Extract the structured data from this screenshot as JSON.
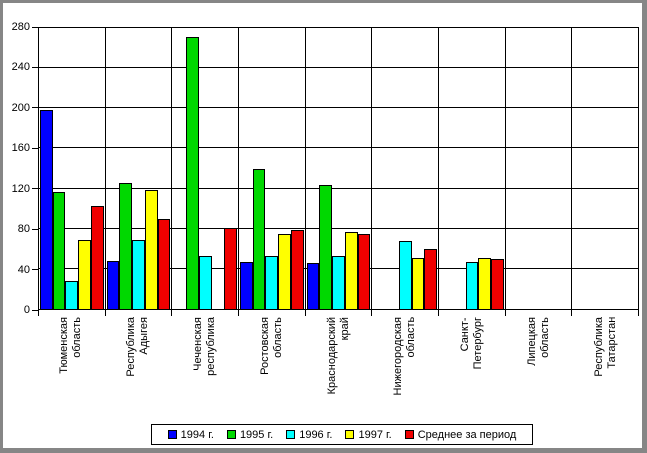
{
  "chart_data": {
    "type": "bar",
    "title": "",
    "xlabel": "",
    "ylabel": "",
    "grid": "both",
    "legend_position": "bottom",
    "y_axis": {
      "min": 0,
      "max": 280,
      "step": 40,
      "ticks": [
        "0",
        "40",
        "80",
        "120",
        "160",
        "200",
        "240",
        "280"
      ]
    },
    "categories": [
      "Тюменская\nобласть",
      "Республика\nАдыгея",
      "Чеченская\nреспублика",
      "Ростовская\nобласть",
      "Краснодарский\nкрай",
      "Нижегородская\nобласть",
      "Санкт-\nПетербург",
      "Липецкая\nобласть",
      "Республика\nТатарстан"
    ],
    "series": [
      {
        "name": "1994 г.",
        "color": "#0000ff",
        "values": [
          198,
          48,
          0,
          47,
          46,
          0,
          0,
          0,
          0
        ]
      },
      {
        "name": "1995 г.",
        "color": "#00d800",
        "values": [
          117,
          126,
          271,
          140,
          124,
          0,
          0,
          0,
          0
        ]
      },
      {
        "name": "1996 г.",
        "color": "#00ffff",
        "values": [
          28,
          69,
          53,
          53,
          53,
          68,
          47,
          0,
          0
        ]
      },
      {
        "name": "1997 г.",
        "color": "#ffff00",
        "values": [
          69,
          119,
          0,
          75,
          77,
          51,
          51,
          0,
          0
        ]
      },
      {
        "name": "Среднее за период",
        "color": "#f00000",
        "values": [
          103,
          90,
          81,
          79,
          75,
          60,
          50,
          0,
          0
        ]
      }
    ]
  },
  "frame": {
    "border_color": "#868686",
    "background": "#ffffff",
    "gridline_color": "#000000"
  }
}
